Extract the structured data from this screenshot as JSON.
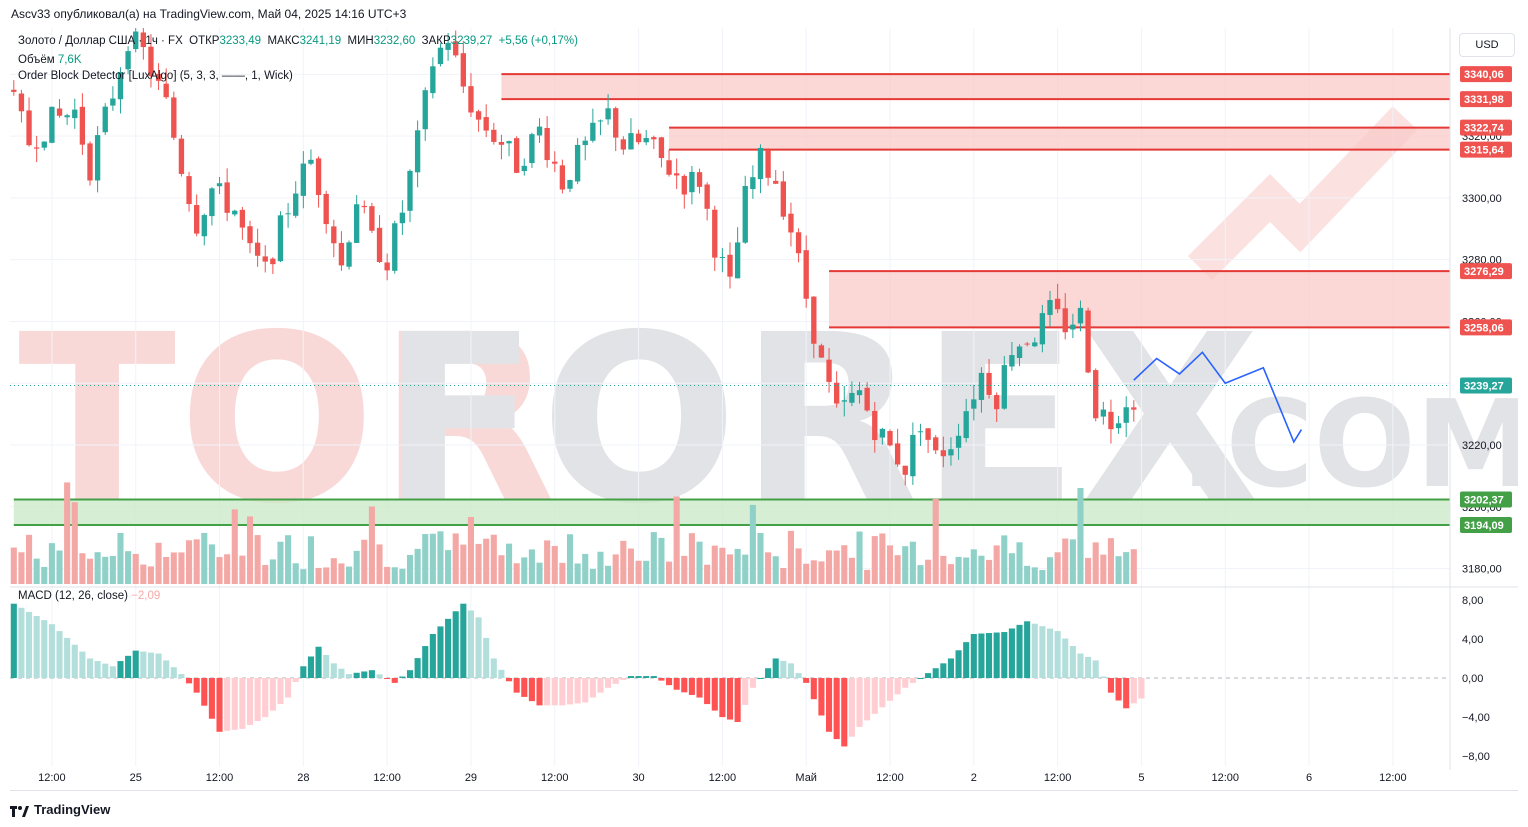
{
  "header": {
    "publisher_line": "Ascv33 опубликовал(а) на TradingView.com, Май 04, 2025 14:16 UTC+3",
    "currency_button": "USD"
  },
  "legend": {
    "symbol": "Золото / Доллар США",
    "interval": "1ч",
    "exchange": "FX",
    "open_label": "ОТКР",
    "open_value": "3233,49",
    "high_label": "МАКС",
    "high_value": "3241,19",
    "low_label": "МИН",
    "low_value": "3232,60",
    "close_label": "ЗАКР",
    "close_value": "3239,27",
    "change": "+5,56 (+0,17%)",
    "volume_label": "Объём",
    "volume_value": "7,6K",
    "indicator": "Order Block Detector [LuxAlgo] (5, 3, 3, ——, 1, Wick)",
    "macd_label": "MACD (12, 26, close)",
    "macd_value": "−2,09"
  },
  "watermark": {
    "text": "TORFOREX",
    "suffix": ".COM"
  },
  "footer": {
    "brand": "TradingView"
  },
  "colors": {
    "up": "#26a69a",
    "down": "#ef5350",
    "vol_up": "#8fd1c8",
    "vol_down": "#f4a8a6",
    "bear_block_fill": "#f9c9c8",
    "bear_block_line": "#e53935",
    "bull_block_fill": "#c8e9c6",
    "bull_block_line": "#43a047",
    "price_line": "#26a69a",
    "forecast": "#2962ff"
  },
  "chart_data": {
    "type": "candlestick",
    "symbol": "XAU/USD",
    "timeframe": "1h",
    "y_axis": {
      "min": 3175,
      "max": 3355,
      "ticks": [
        "3180,00",
        "3200,00",
        "3220,00",
        "3240,00",
        "3260,00",
        "3280,00",
        "3300,00",
        "3320,00",
        "3340,00"
      ]
    },
    "x_axis": {
      "labels": [
        {
          "text": "12:00",
          "index": 5
        },
        {
          "text": "25",
          "index": 16
        },
        {
          "text": "12:00",
          "index": 27
        },
        {
          "text": "28",
          "index": 38
        },
        {
          "text": "12:00",
          "index": 49
        },
        {
          "text": "29",
          "index": 60
        },
        {
          "text": "12:00",
          "index": 71
        },
        {
          "text": "30",
          "index": 82
        },
        {
          "text": "12:00",
          "index": 93
        },
        {
          "text": "Май",
          "index": 104
        },
        {
          "text": "12:00",
          "index": 115
        },
        {
          "text": "2",
          "index": 126
        },
        {
          "text": "12:00",
          "index": 137
        },
        {
          "text": "5",
          "index": 148
        },
        {
          "text": "12:00",
          "index": 159
        },
        {
          "text": "6",
          "index": 170
        },
        {
          "text": "12:00",
          "index": 181
        }
      ],
      "total_slots": 189
    },
    "price_path": [
      [
        0,
        3336
      ],
      [
        3,
        3318
      ],
      [
        6,
        3325
      ],
      [
        9,
        3328
      ],
      [
        11,
        3310
      ],
      [
        14,
        3334
      ],
      [
        16,
        3352
      ],
      [
        18,
        3347
      ],
      [
        21,
        3330
      ],
      [
        23,
        3310
      ],
      [
        25,
        3292
      ],
      [
        27,
        3303
      ],
      [
        30,
        3296
      ],
      [
        32,
        3282
      ],
      [
        34,
        3276
      ],
      [
        36,
        3290
      ],
      [
        38,
        3304
      ],
      [
        40,
        3312
      ],
      [
        42,
        3296
      ],
      [
        44,
        3278
      ],
      [
        46,
        3300
      ],
      [
        48,
        3286
      ],
      [
        50,
        3280
      ],
      [
        52,
        3296
      ],
      [
        54,
        3318
      ],
      [
        56,
        3344
      ],
      [
        58,
        3352
      ],
      [
        60,
        3336
      ],
      [
        62,
        3325
      ],
      [
        65,
        3318
      ],
      [
        67,
        3311
      ],
      [
        70,
        3322
      ],
      [
        73,
        3305
      ],
      [
        75,
        3313
      ],
      [
        77,
        3320
      ],
      [
        79,
        3327
      ],
      [
        81,
        3317
      ],
      [
        84,
        3318
      ],
      [
        86,
        3312
      ],
      [
        89,
        3305
      ],
      [
        91,
        3306
      ],
      [
        93,
        3285
      ],
      [
        95,
        3271
      ],
      [
        97,
        3300
      ],
      [
        99,
        3312
      ],
      [
        101,
        3306
      ],
      [
        103,
        3290
      ],
      [
        105,
        3268
      ],
      [
        107,
        3246
      ],
      [
        109,
        3230
      ],
      [
        112,
        3237
      ],
      [
        114,
        3226
      ],
      [
        116,
        3219
      ],
      [
        118,
        3213
      ],
      [
        120,
        3228
      ],
      [
        122,
        3216
      ],
      [
        124,
        3221
      ],
      [
        126,
        3232
      ],
      [
        128,
        3243
      ],
      [
        130,
        3236
      ],
      [
        132,
        3252
      ],
      [
        135,
        3256
      ],
      [
        137,
        3263
      ],
      [
        139,
        3259
      ],
      [
        141,
        3262
      ],
      [
        143,
        3232
      ],
      [
        145,
        3228
      ],
      [
        147,
        3235
      ]
    ],
    "last_price": "3239,27",
    "order_blocks": [
      {
        "type": "bearish",
        "top": 3340.06,
        "bottom": 3331.98,
        "top_label": "3340,06",
        "bottom_label": "3331,98",
        "start_index": 64
      },
      {
        "type": "bearish",
        "top": 3322.74,
        "bottom": 3315.64,
        "top_label": "3322,74",
        "bottom_label": "3315,64",
        "start_index": 86
      },
      {
        "type": "bearish",
        "top": 3276.29,
        "bottom": 3258.06,
        "top_label": "3276,29",
        "bottom_label": "3258,06",
        "start_index": 107
      },
      {
        "type": "bullish",
        "top": 3202.37,
        "bottom": 3194.09,
        "top_label": "3202,37",
        "bottom_label": "3194,09",
        "start_index": 0
      }
    ],
    "forecast_path": [
      [
        147,
        3241
      ],
      [
        150,
        3248
      ],
      [
        153,
        3243
      ],
      [
        156,
        3250
      ],
      [
        159,
        3240
      ],
      [
        164,
        3245
      ],
      [
        168,
        3221
      ],
      [
        169,
        3225
      ]
    ],
    "macd": {
      "label": "MACD (12, 26, close)",
      "current": -2.09,
      "y_ticks": [
        "8,00",
        "4,00",
        "0,00",
        "−4,00",
        "−8,00"
      ],
      "y_min": -9,
      "y_max": 9,
      "histogram_path": [
        [
          0,
          7.6
        ],
        [
          5,
          5.5
        ],
        [
          10,
          2.0
        ],
        [
          13,
          1.2
        ],
        [
          16,
          2.8
        ],
        [
          19,
          2.5
        ],
        [
          22,
          0.4
        ],
        [
          24,
          -1.5
        ],
        [
          27,
          -5.5
        ],
        [
          30,
          -5.2
        ],
        [
          33,
          -4.0
        ],
        [
          36,
          -2.0
        ],
        [
          38,
          1.2
        ],
        [
          40,
          3.2
        ],
        [
          42,
          1.5
        ],
        [
          44,
          0.4
        ],
        [
          47,
          0.8
        ],
        [
          50,
          -0.5
        ],
        [
          52,
          0.8
        ],
        [
          55,
          4.5
        ],
        [
          59,
          7.6
        ],
        [
          61,
          6.2
        ],
        [
          63,
          2.0
        ],
        [
          66,
          -1.5
        ],
        [
          69,
          -2.8
        ],
        [
          72,
          -2.8
        ],
        [
          75,
          -2.5
        ],
        [
          78,
          -1.0
        ],
        [
          81,
          0.2
        ],
        [
          84,
          0.2
        ],
        [
          87,
          -1.2
        ],
        [
          90,
          -2.0
        ],
        [
          93,
          -4.0
        ],
        [
          95,
          -4.5
        ],
        [
          97,
          -1.0
        ],
        [
          100,
          2.0
        ],
        [
          102,
          1.5
        ],
        [
          104,
          -0.5
        ],
        [
          107,
          -5.5
        ],
        [
          109,
          -7.0
        ],
        [
          111,
          -5.0
        ],
        [
          114,
          -3.0
        ],
        [
          117,
          -1.0
        ],
        [
          120,
          0.5
        ],
        [
          123,
          2.0
        ],
        [
          126,
          4.5
        ],
        [
          130,
          4.7
        ],
        [
          133,
          5.8
        ],
        [
          137,
          4.8
        ],
        [
          140,
          2.5
        ],
        [
          142,
          1.8
        ],
        [
          144,
          -1.5
        ],
        [
          146,
          -3.1
        ],
        [
          148,
          -2.1
        ]
      ]
    },
    "volume": {
      "scale_max": 100,
      "values_hint": "shown as histogram bars at the bottom of price pane"
    }
  }
}
